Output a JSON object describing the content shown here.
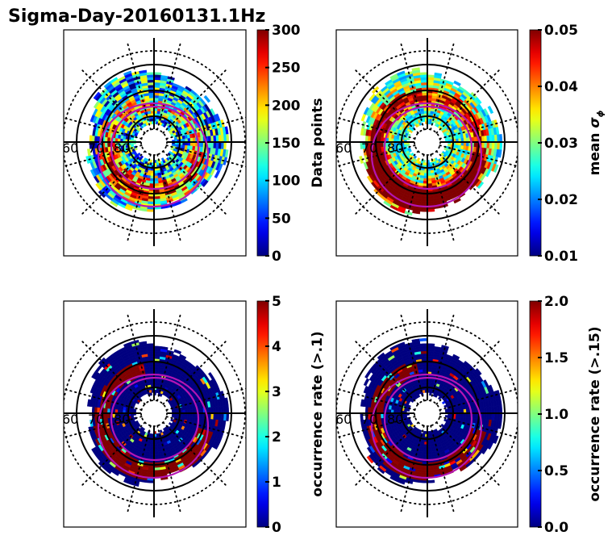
{
  "chart_data": {
    "title": "Sigma-Day-20160131.1Hz",
    "type": "heatmap",
    "projection": "polar (magnetic latitude / MLT dial plot, north pole centered)",
    "colormap": "jet",
    "latitude_labels": [
      "60",
      "70",
      "80"
    ],
    "latitude_circles_deg": [
      60,
      70,
      80
    ],
    "dotted_latitude_circles_deg": [
      55,
      85
    ],
    "radial_grid_spacing_deg": 30,
    "auroral_oval_boundaries": {
      "count": 2,
      "color": "#b414b4"
    },
    "panels": [
      {
        "id": "data-points",
        "colorbar_label": "Data points",
        "vmin": 0,
        "vmax": 300,
        "ticks": [
          "0",
          "50",
          "100",
          "150",
          "200",
          "250",
          "300"
        ],
        "pattern": {
          "base": 0.3,
          "band_lat": 73,
          "band_val": 0.55,
          "noise": 0.35,
          "night_boost": 0.1
        }
      },
      {
        "id": "mean-sigma-phi",
        "colorbar_label": "mean σ",
        "colorbar_label_sub": "ϕ",
        "vmin": 0.01,
        "vmax": 0.05,
        "ticks": [
          "0.01",
          "0.02",
          "0.03",
          "0.04",
          "0.05"
        ],
        "pattern": {
          "base": 0.42,
          "band_lat": 70,
          "band_val": 1.0,
          "noise": 0.3,
          "night_boost": 0.35
        }
      },
      {
        "id": "occurrence-rate-01",
        "colorbar_label": "occurrence rate (>.1)",
        "vmin": 0,
        "vmax": 5,
        "ticks": [
          "0",
          "1",
          "2",
          "3",
          "4",
          "5"
        ],
        "pattern": {
          "base": 0.0,
          "band_lat": 70,
          "band_val": 1.0,
          "noise": 0.15,
          "night_boost": 0.5
        }
      },
      {
        "id": "occurrence-rate-015",
        "colorbar_label": "occurrence rate (>.15)",
        "vmin": 0.0,
        "vmax": 2.0,
        "ticks": [
          "0.0",
          "0.5",
          "1.0",
          "1.5",
          "2.0"
        ],
        "pattern": {
          "base": 0.0,
          "band_lat": 70,
          "band_val": 1.0,
          "noise": 0.12,
          "night_boost": 0.45
        }
      }
    ]
  }
}
